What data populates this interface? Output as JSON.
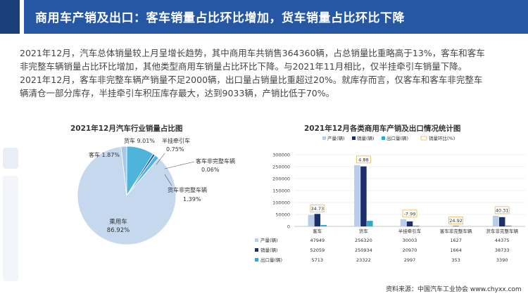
{
  "header": {
    "title": "商用车产销及出口：客车销量占比环比增加，货车销量占比环比下降"
  },
  "paragraph": {
    "line1": "2021年12月，汽车总体销量较上月呈增长趋势，其中商用车共销售364360辆，占总销量比重略高于13%，客车和客车",
    "line2": "非完整车辆销量占比环比增加，其他类型商用车销量占比环比下降。与2021年11月相比，仅半挂牵引车销量下降。",
    "line3": "2021年12月，客车非完整车辆产销量不足2000辆，出口量占销量比重超过20%。就库存而言，仅客车和客车非完整车",
    "line4": "辆清仓一部分库存，半挂牵引车积压库存最大，达到9033辆，产销比低于70%。"
  },
  "footer": {
    "source": "资料来源：中国汽车工业协会  www.chyxx.com"
  },
  "colors": {
    "title_bar": "#2657a5",
    "title_bar_dark": "#1b3f78",
    "production": "#b7cde9",
    "sales": "#1a2f6b",
    "export": "#2eaad1",
    "pie_main": "#c5d8ee",
    "pie_bus": "#a8c8e6",
    "pie_truck": "#4fb4dc",
    "pie_tractor": "#1f5fa8",
    "pie_incomplete": "#2f9a8e",
    "yoy_box": "#e4b85b"
  },
  "chart_data": [
    {
      "type": "pie",
      "title": "2021年12月汽车行业销量占比图",
      "slices": [
        {
          "name": "乘用车",
          "value": 86.92,
          "label": "86.92%"
        },
        {
          "name": "客车",
          "value": 1.87,
          "label": "1.87%"
        },
        {
          "name": "货车",
          "value": 9.01,
          "label": "9.01%"
        },
        {
          "name": "半挂牵引车",
          "value": 0.75,
          "label": "0.75%"
        },
        {
          "name": "客车非完整车辆",
          "value": 0.06,
          "label": "0.06%"
        },
        {
          "name": "货车非完整车辆",
          "value": 1.39,
          "label": "1.39%"
        }
      ]
    },
    {
      "type": "bar",
      "title": "2021年12月各类商用车产销及出口情况统计图",
      "categories": [
        "客车",
        "货车",
        "半挂牵引车",
        "客车非完整车辆",
        "货车非完整车辆"
      ],
      "series": [
        {
          "name": "产量(辆)",
          "values": [
            47949,
            256320,
            30003,
            1627,
            44375
          ]
        },
        {
          "name": "销量(辆)",
          "values": [
            52059,
            250934,
            20970,
            1664,
            38733
          ]
        },
        {
          "name": "出口量(辆)",
          "values": [
            5713,
            23322,
            2997,
            353,
            3390
          ]
        }
      ],
      "mom_series": {
        "name": "销量环比(%)",
        "values": [
          "34.73",
          "4.88",
          "-7.99",
          "24.92",
          "40.31"
        ]
      },
      "yticks": [
        "0",
        "50000",
        "100000",
        "150000",
        "200000",
        "250000",
        "300000"
      ],
      "ylim": [
        0,
        300000
      ],
      "grid": true,
      "legend": "top"
    }
  ]
}
